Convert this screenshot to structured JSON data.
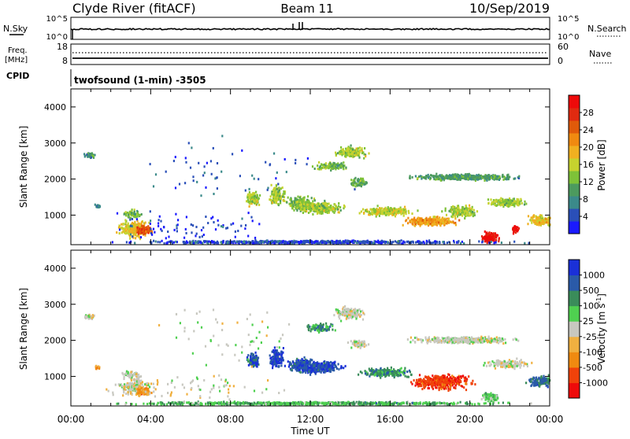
{
  "header": {
    "station": "Clyde River (fitACF)",
    "beam": "Beam 11",
    "date": "10/Sep/2019"
  },
  "noise_panel": {
    "left_label": "N.Sky",
    "left_ticks": [
      "10^5",
      "10^0"
    ],
    "right_label": "N.Search",
    "right_ticks": [
      "10^5",
      "10^0"
    ]
  },
  "freq_panel": {
    "left_label_1": "Freq.",
    "left_label_2": "[MHz]",
    "left_ticks": [
      "18",
      "8"
    ],
    "right_label": "Nave",
    "right_ticks": [
      "60",
      "0"
    ]
  },
  "cpid_panel": {
    "label": "CPID",
    "text": "twofsound (1-min) -3505"
  },
  "chart_data": [
    {
      "type": "heatmap",
      "panel": "power",
      "ylabel": "Slant Range [km]",
      "ylim": [
        180,
        4500
      ],
      "yticks": [
        1000,
        2000,
        3000,
        4000
      ],
      "xlim_hours": [
        0,
        24
      ],
      "colorbar": {
        "label": "Power [dB]",
        "range": [
          0,
          32
        ],
        "ticks": [
          "4",
          "8",
          "12",
          "16",
          "20",
          "24",
          "28"
        ],
        "colors": [
          "#1a1aff",
          "#2a4fb8",
          "#3b8a8a",
          "#4c9a5e",
          "#7ec238",
          "#c6d22e",
          "#f0b020",
          "#f08a10",
          "#e05a0a",
          "#e02a10",
          "#ee0a0a"
        ]
      },
      "regions": [
        {
          "x": 0.9,
          "y": 2650,
          "hw": 0.35,
          "hh": 90,
          "n": 45,
          "v": 0.3
        },
        {
          "x": 1.3,
          "y": 1250,
          "hw": 0.2,
          "hh": 60,
          "n": 15,
          "v": 0.25
        },
        {
          "x": 3.2,
          "y": 600,
          "hw": 1.0,
          "hh": 300,
          "n": 220,
          "v": 0.55
        },
        {
          "x": 3.6,
          "y": 580,
          "hw": 0.5,
          "hh": 150,
          "n": 150,
          "v": 0.8
        },
        {
          "x": 3.0,
          "y": 1050,
          "hw": 0.6,
          "hh": 150,
          "n": 60,
          "v": 0.4
        },
        {
          "x": 9.1,
          "y": 1450,
          "hw": 0.4,
          "hh": 250,
          "n": 110,
          "v": 0.45
        },
        {
          "x": 10.3,
          "y": 1550,
          "hw": 0.5,
          "hh": 350,
          "n": 140,
          "v": 0.45
        },
        {
          "x": 11.5,
          "y": 1300,
          "hw": 0.9,
          "hh": 250,
          "n": 200,
          "v": 0.4
        },
        {
          "x": 12.5,
          "y": 1200,
          "hw": 1.4,
          "hh": 220,
          "n": 280,
          "v": 0.45
        },
        {
          "x": 14.0,
          "y": 2750,
          "hw": 1.0,
          "hh": 200,
          "n": 160,
          "v": 0.45
        },
        {
          "x": 13.0,
          "y": 2350,
          "hw": 1.0,
          "hh": 150,
          "n": 110,
          "v": 0.4
        },
        {
          "x": 14.4,
          "y": 1900,
          "hw": 0.6,
          "hh": 150,
          "n": 70,
          "v": 0.35
        },
        {
          "x": 15.8,
          "y": 1100,
          "hw": 1.6,
          "hh": 160,
          "n": 260,
          "v": 0.5
        },
        {
          "x": 18.0,
          "y": 820,
          "hw": 1.6,
          "hh": 160,
          "n": 300,
          "v": 0.65
        },
        {
          "x": 19.8,
          "y": 2050,
          "hw": 3.3,
          "hh": 110,
          "n": 420,
          "v": 0.3
        },
        {
          "x": 19.5,
          "y": 1100,
          "hw": 1.0,
          "hh": 200,
          "n": 180,
          "v": 0.45
        },
        {
          "x": 21.8,
          "y": 1350,
          "hw": 1.4,
          "hh": 150,
          "n": 160,
          "v": 0.45
        },
        {
          "x": 23.5,
          "y": 850,
          "hw": 0.8,
          "hh": 200,
          "n": 140,
          "v": 0.55
        },
        {
          "x": 21.0,
          "y": 380,
          "hw": 0.55,
          "hh": 180,
          "n": 130,
          "v": 0.95
        },
        {
          "x": 22.2,
          "y": 600,
          "hw": 0.25,
          "hh": 160,
          "n": 40,
          "v": 0.9
        },
        {
          "x": 12.0,
          "y": 250,
          "hw": 12.0,
          "hh": 55,
          "n": 650,
          "v": 0.12
        },
        {
          "x": 6.0,
          "y": 700,
          "hw": 6.0,
          "hh": 500,
          "n": 80,
          "v": 0.1
        },
        {
          "x": 8.0,
          "y": 2200,
          "hw": 7.0,
          "hh": 1200,
          "n": 60,
          "v": 0.15
        }
      ]
    },
    {
      "type": "heatmap",
      "panel": "velocity",
      "ylabel": "Slant Range [km]",
      "ylim": [
        180,
        4500
      ],
      "yticks": [
        1000,
        2000,
        3000,
        4000
      ],
      "xlim_hours": [
        0,
        24
      ],
      "colorbar": {
        "label": "Velocity [m s^-1]",
        "ticks": [
          "1000",
          "500",
          "100",
          "25",
          "-25",
          "-100",
          "-500",
          "-1000"
        ],
        "colors": [
          "#ee0a0a",
          "#f0420a",
          "#f08a10",
          "#f0b040",
          "#c8c8c0",
          "#4fd050",
          "#3a8c5a",
          "#2a5aa8",
          "#1a30d8"
        ]
      },
      "regions": [
        {
          "x": 0.9,
          "y": 2650,
          "hw": 0.35,
          "hh": 90,
          "n": 45,
          "v": 0.5
        },
        {
          "x": 1.3,
          "y": 1250,
          "hw": 0.2,
          "hh": 60,
          "n": 15,
          "v": 0.3
        },
        {
          "x": 3.2,
          "y": 700,
          "hw": 1.0,
          "hh": 300,
          "n": 200,
          "v": 0.5
        },
        {
          "x": 3.6,
          "y": 580,
          "hw": 0.5,
          "hh": 150,
          "n": 120,
          "v": 0.3
        },
        {
          "x": 3.0,
          "y": 1050,
          "hw": 0.6,
          "hh": 150,
          "n": 60,
          "v": 0.5
        },
        {
          "x": 9.1,
          "y": 1450,
          "hw": 0.4,
          "hh": 250,
          "n": 110,
          "v": 0.85
        },
        {
          "x": 10.3,
          "y": 1500,
          "hw": 0.5,
          "hh": 350,
          "n": 150,
          "v": 0.9
        },
        {
          "x": 11.5,
          "y": 1300,
          "hw": 0.9,
          "hh": 250,
          "n": 200,
          "v": 0.85
        },
        {
          "x": 12.5,
          "y": 1250,
          "hw": 1.4,
          "hh": 220,
          "n": 260,
          "v": 0.88
        },
        {
          "x": 14.0,
          "y": 2750,
          "hw": 1.0,
          "hh": 200,
          "n": 160,
          "v": 0.5
        },
        {
          "x": 12.5,
          "y": 2350,
          "hw": 0.9,
          "hh": 150,
          "n": 100,
          "v": 0.72
        },
        {
          "x": 14.4,
          "y": 1900,
          "hw": 0.6,
          "hh": 150,
          "n": 70,
          "v": 0.5
        },
        {
          "x": 15.8,
          "y": 1100,
          "hw": 1.6,
          "hh": 160,
          "n": 240,
          "v": 0.72
        },
        {
          "x": 18.5,
          "y": 850,
          "hw": 2.0,
          "hh": 260,
          "n": 380,
          "v": 0.15
        },
        {
          "x": 19.8,
          "y": 2000,
          "hw": 3.3,
          "hh": 120,
          "n": 420,
          "v": 0.5
        },
        {
          "x": 21.8,
          "y": 1350,
          "hw": 1.4,
          "hh": 150,
          "n": 140,
          "v": 0.5
        },
        {
          "x": 23.5,
          "y": 850,
          "hw": 0.8,
          "hh": 200,
          "n": 120,
          "v": 0.8
        },
        {
          "x": 21.0,
          "y": 420,
          "hw": 0.55,
          "hh": 180,
          "n": 100,
          "v": 0.6
        },
        {
          "x": 12.0,
          "y": 250,
          "hw": 12.0,
          "hh": 55,
          "n": 650,
          "v": 0.65
        },
        {
          "x": 6.0,
          "y": 700,
          "hw": 6.0,
          "hh": 500,
          "n": 80,
          "v": 0.5
        },
        {
          "x": 8.0,
          "y": 2200,
          "hw": 7.0,
          "hh": 1200,
          "n": 60,
          "v": 0.55
        }
      ]
    }
  ],
  "x_axis": {
    "ticks": [
      "00:00",
      "04:00",
      "08:00",
      "12:00",
      "16:00",
      "20:00",
      "00:00"
    ],
    "label": "Time UT"
  }
}
